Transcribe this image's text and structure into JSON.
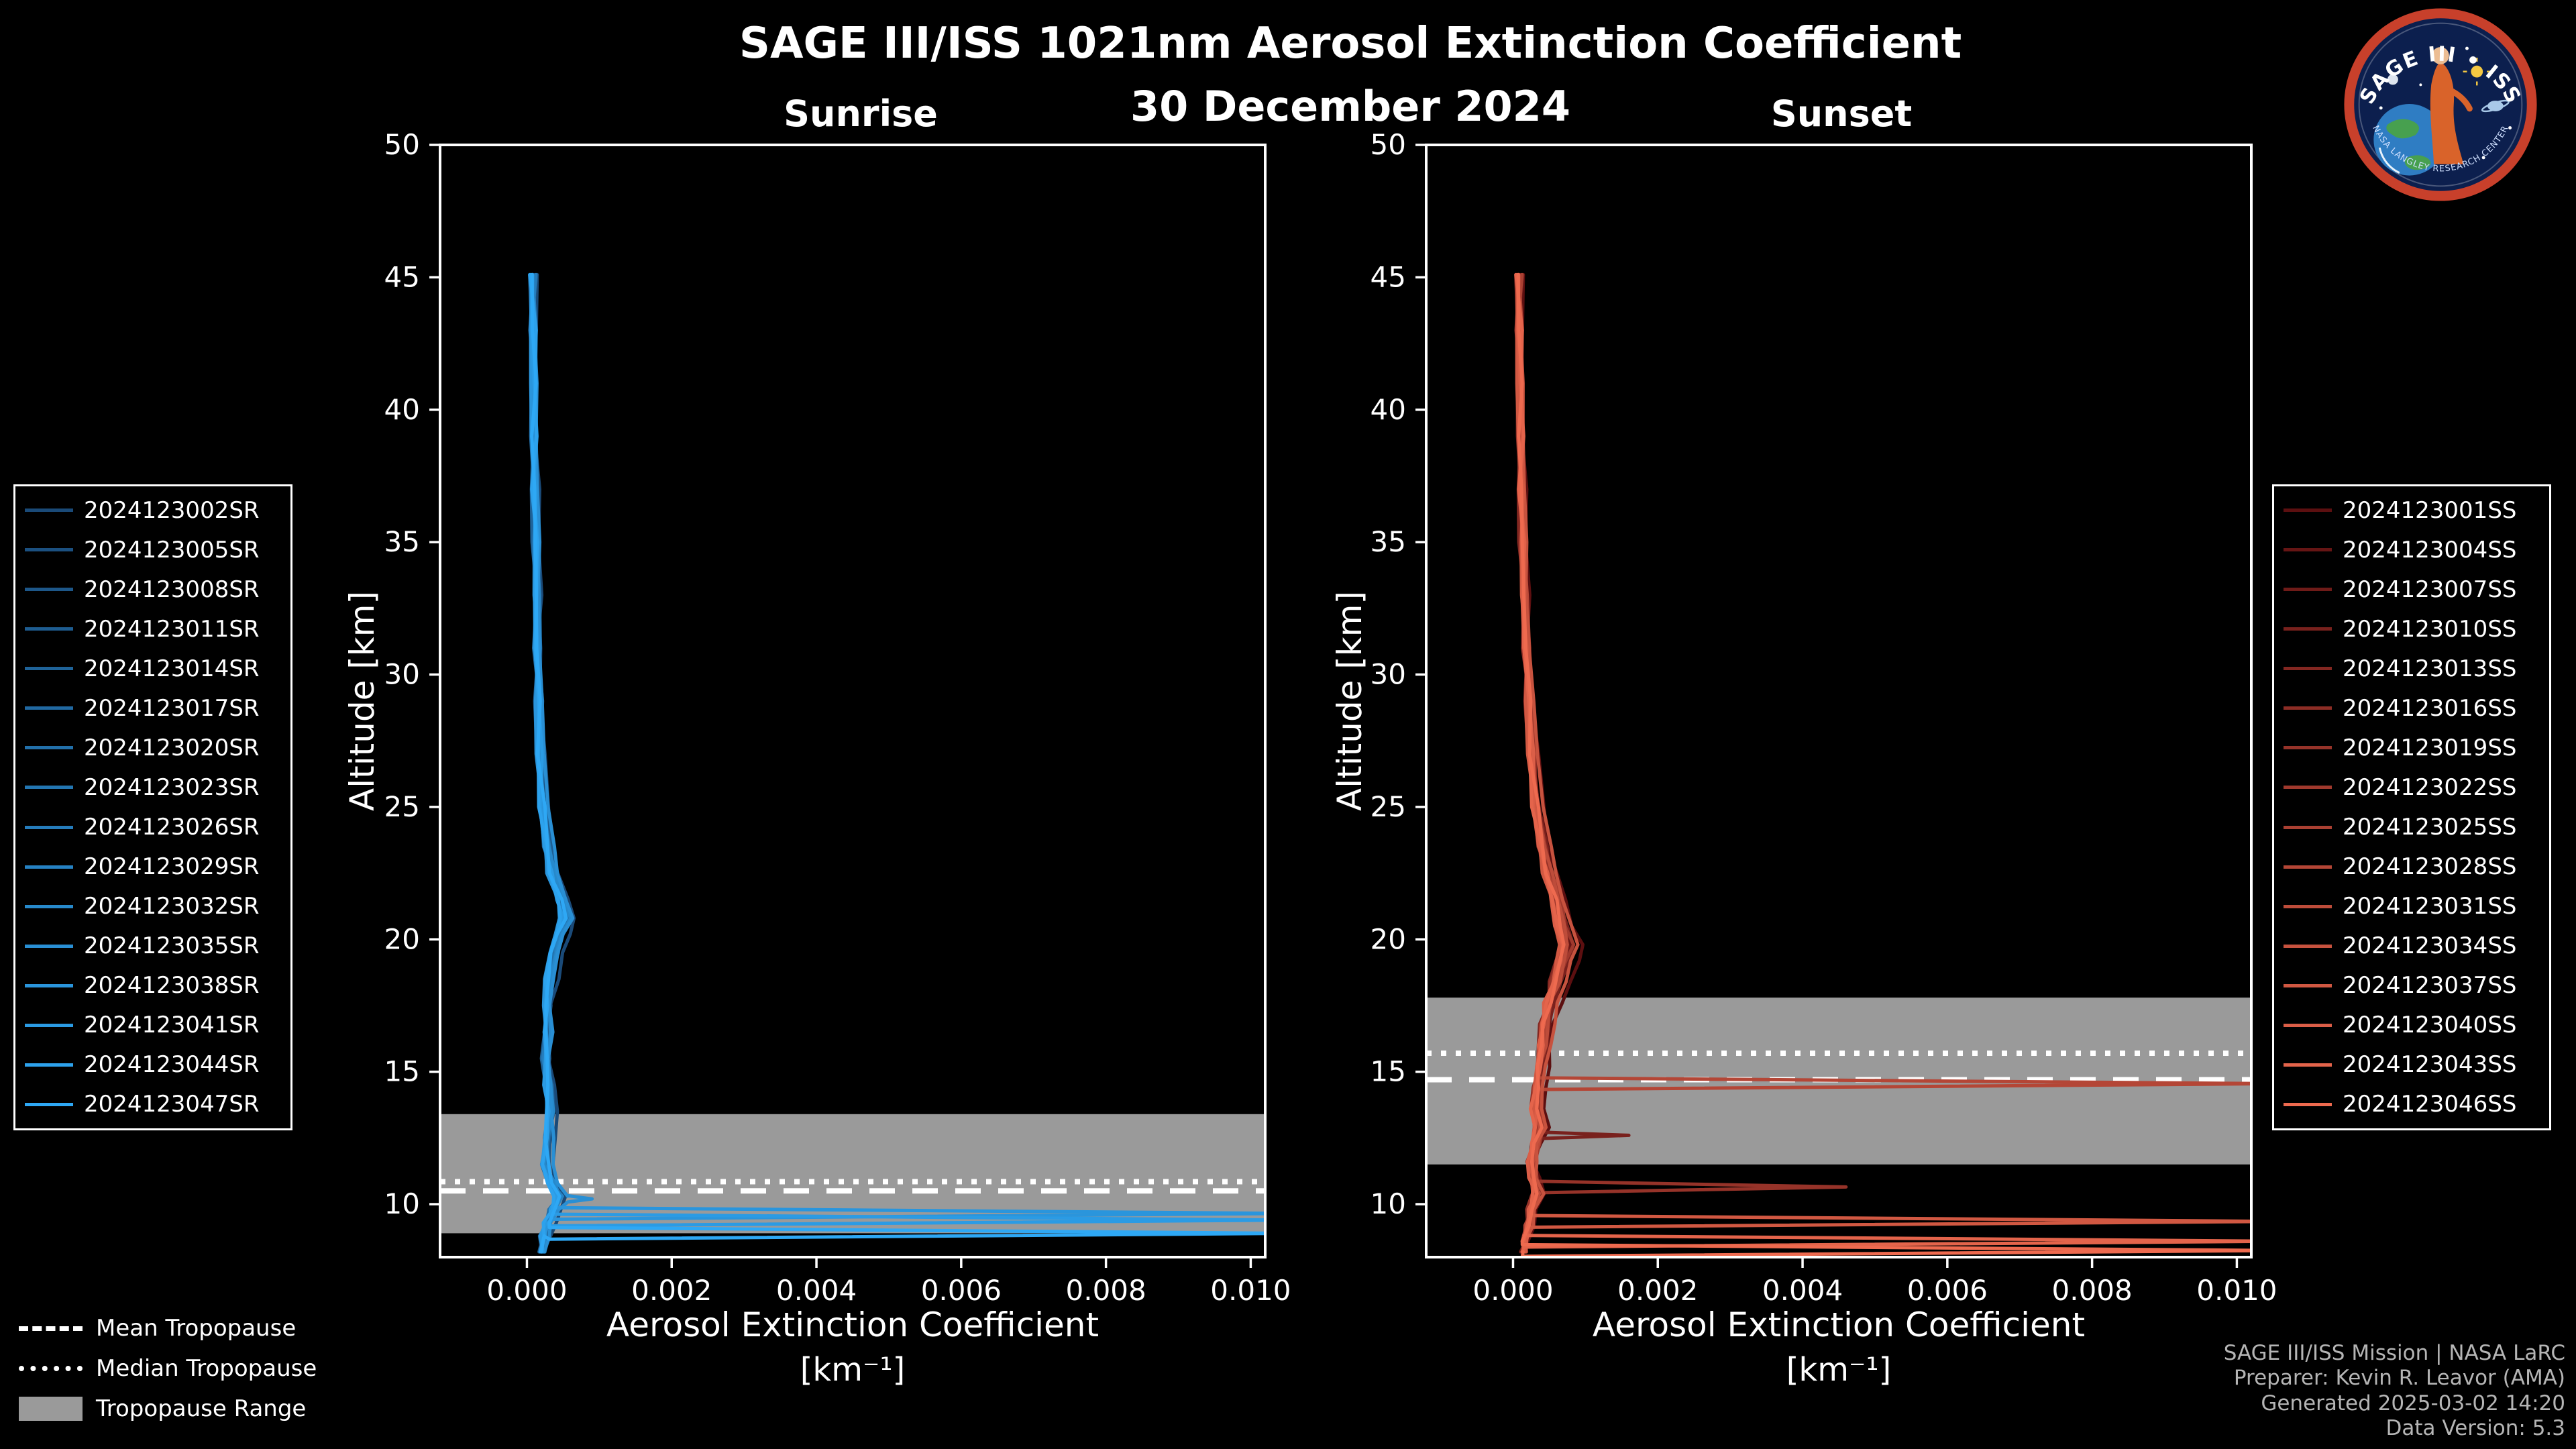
{
  "chart_data": {
    "type": "line",
    "title": "SAGE III/ISS 1021nm Aerosol Extinction Coefficient",
    "date": "30 December 2024",
    "xlabel": "Aerosol Extinction Coefficient",
    "xlabel_units": "[km⁻¹]",
    "ylabel": "Altitude [km]",
    "xlim": [
      -0.0012,
      0.0102
    ],
    "ylim": [
      8,
      50
    ],
    "xticks": [
      0,
      0.002,
      0.004,
      0.006,
      0.008,
      0.01
    ],
    "xtick_labels": [
      "0.000",
      "0.002",
      "0.004",
      "0.006",
      "0.008",
      "0.010"
    ],
    "yticks": [
      10,
      15,
      20,
      25,
      30,
      35,
      40,
      45,
      50
    ],
    "colors": {
      "band": "#9a9a9a",
      "axis": "#ffffff",
      "tropopause": "#ffffff",
      "background": "#000000"
    },
    "panels": [
      {
        "id": "sunrise",
        "title": "Sunrise",
        "color_start": "#1a4a78",
        "color_end": "#2ea8f5",
        "tropopause": {
          "mean_km": 10.5,
          "median_km": 10.85,
          "range_km": [
            8.9,
            13.4
          ]
        },
        "series": [
          "2024123002SR",
          "2024123005SR",
          "2024123008SR",
          "2024123011SR",
          "2024123014SR",
          "2024123017SR",
          "2024123020SR",
          "2024123023SR",
          "2024123026SR",
          "2024123029SR",
          "2024123032SR",
          "2024123035SR",
          "2024123038SR",
          "2024123041SR",
          "2024123044SR",
          "2024123047SR"
        ],
        "profile_base": [
          [
            45.1,
            8e-05
          ],
          [
            43,
            9e-05
          ],
          [
            41,
            0.0001
          ],
          [
            39,
            0.0001
          ],
          [
            37,
            0.00011
          ],
          [
            35,
            0.00012
          ],
          [
            33,
            0.00013
          ],
          [
            31,
            0.00014
          ],
          [
            29,
            0.00016
          ],
          [
            27,
            0.00018
          ],
          [
            25,
            0.00022
          ],
          [
            23.5,
            0.00028
          ],
          [
            22.5,
            0.00034
          ],
          [
            21.5,
            0.00046
          ],
          [
            20.8,
            0.00052
          ],
          [
            20.2,
            0.00044
          ],
          [
            19.5,
            0.00036
          ],
          [
            18.5,
            0.00031
          ],
          [
            17.5,
            0.00028
          ],
          [
            16.5,
            0.00027
          ],
          [
            15.5,
            0.00026
          ],
          [
            14.5,
            0.00028
          ],
          [
            13.5,
            0.0003
          ],
          [
            12.5,
            0.00028
          ],
          [
            11.5,
            0.00026
          ],
          [
            10.8,
            0.00032
          ],
          [
            10.3,
            0.00044
          ],
          [
            9.8,
            0.00036
          ],
          [
            9.3,
            0.00028
          ],
          [
            8.8,
            0.00022
          ],
          [
            8.2,
            0.0002
          ]
        ],
        "spikes": [
          {
            "series": 11,
            "alt": 10.2,
            "ext": 0.0009
          },
          {
            "series": 12,
            "alt": 9.65,
            "ext": 0.0105
          },
          {
            "series": 13,
            "alt": 9.4,
            "ext": 0.0105
          },
          {
            "series": 15,
            "alt": 8.9,
            "ext": 0.0105
          }
        ]
      },
      {
        "id": "sunset",
        "title": "Sunset",
        "color_start": "#5c0f10",
        "color_end": "#ee6a4f",
        "tropopause": {
          "mean_km": 14.7,
          "median_km": 15.7,
          "range_km": [
            11.5,
            17.8
          ]
        },
        "series": [
          "2024123001SS",
          "2024123004SS",
          "2024123007SS",
          "2024123010SS",
          "2024123013SS",
          "2024123016SS",
          "2024123019SS",
          "2024123022SS",
          "2024123025SS",
          "2024123028SS",
          "2024123031SS",
          "2024123034SS",
          "2024123037SS",
          "2024123040SS",
          "2024123043SS",
          "2024123046SS"
        ],
        "profile_base": [
          [
            45.1,
            8e-05
          ],
          [
            43,
            9e-05
          ],
          [
            41,
            0.0001
          ],
          [
            39,
            0.00011
          ],
          [
            37,
            0.00012
          ],
          [
            35,
            0.00013
          ],
          [
            33,
            0.00015
          ],
          [
            31,
            0.00018
          ],
          [
            29,
            0.00022
          ],
          [
            27,
            0.00026
          ],
          [
            25,
            0.00032
          ],
          [
            23.5,
            0.0004
          ],
          [
            22.5,
            0.00048
          ],
          [
            21.5,
            0.00058
          ],
          [
            20.5,
            0.00066
          ],
          [
            19.8,
            0.00072
          ],
          [
            19.2,
            0.00068
          ],
          [
            18.4,
            0.00058
          ],
          [
            17.6,
            0.0005
          ],
          [
            16.8,
            0.00044
          ],
          [
            16,
            0.0004
          ],
          [
            15.2,
            0.00036
          ],
          [
            14.4,
            0.00033
          ],
          [
            13.6,
            0.0003
          ],
          [
            12.9,
            0.00036
          ],
          [
            12.3,
            0.00029
          ],
          [
            11.6,
            0.00024
          ],
          [
            11,
            0.00027
          ],
          [
            10.4,
            0.00031
          ],
          [
            9.8,
            0.00024
          ],
          [
            9.2,
            0.0002
          ],
          [
            8.6,
            0.00016
          ],
          [
            8.2,
            0.00014
          ]
        ],
        "spikes": [
          {
            "series": 3,
            "alt": 12.6,
            "ext": 0.0016
          },
          {
            "series": 6,
            "alt": 10.65,
            "ext": 0.0046
          },
          {
            "series": 9,
            "alt": 14.55,
            "ext": 0.0105
          },
          {
            "series": 12,
            "alt": 9.35,
            "ext": 0.0105
          },
          {
            "series": 14,
            "alt": 8.6,
            "ext": 0.0105
          },
          {
            "series": 15,
            "alt": 8.25,
            "ext": 0.0105
          }
        ]
      }
    ]
  },
  "legend_tropopause": {
    "mean": "Mean Tropopause",
    "median": "Median Tropopause",
    "range": "Tropopause Range"
  },
  "footer": {
    "line1": "SAGE III/ISS Mission | NASA LaRC",
    "line2": "Preparer: Kevin R. Leavor (AMA)",
    "line3": "Generated 2025-03-02 14:20",
    "line4": "Data Version: 5.3"
  },
  "logo": {
    "title": "SAGE III • ISS",
    "subtitle": "NASA LANGLEY RESEARCH CENTER"
  }
}
